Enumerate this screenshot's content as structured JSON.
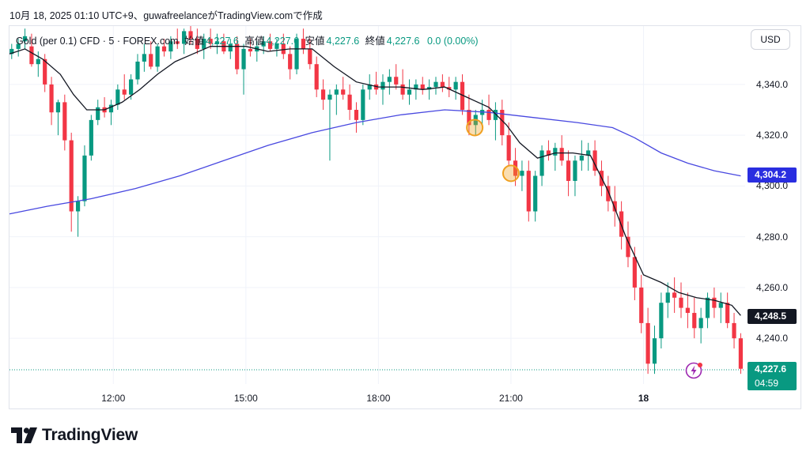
{
  "header": {
    "title": "10月 18, 2025 01:10 UTC+9、guwafreelanceがTradingView.comで作成"
  },
  "legend": {
    "symbol": "Gold (per 0.1) CFD · 5 · FOREX.com",
    "open_label": "始値",
    "open": "4,227.6",
    "high_label": "高値",
    "high": "4,227.6",
    "low_label": "安値",
    "low": "4,227.6",
    "close_label": "終値",
    "close": "4,227.6",
    "change": "0.0 (0.00%)"
  },
  "currency_button": "USD",
  "brand": "TradingView",
  "colors": {
    "up": "#089981",
    "down": "#f23645",
    "ma_fast": "#131722",
    "ma_slow": "#4848e0",
    "marker": "#f0a020",
    "text_up": "#089981"
  },
  "icons": {
    "logo": "tradingview-logo-icon",
    "alert": "lightning-alert-icon"
  },
  "chart_data": {
    "type": "candlestick",
    "title": "Gold (per 0.1) CFD · 5 · FOREX.com",
    "y_ticks": [
      "4,340.0",
      "4,320.0",
      "4,300.0",
      "4,280.0",
      "4,260.0",
      "4,240.0"
    ],
    "y_tick_values": [
      4340,
      4320,
      4300,
      4280,
      4260,
      4240
    ],
    "ylim": [
      4222,
      4363
    ],
    "x_ticks": [
      "12:00",
      "15:00",
      "18:00",
      "21:00",
      "18"
    ],
    "x_tick_hours": [
      12,
      15,
      18,
      21,
      24
    ],
    "xlim_hours": [
      9.65,
      26.3
    ],
    "grid": true,
    "price_tags": [
      {
        "label": "4,304.2",
        "value": 4304.2,
        "color": "#2a2ee0",
        "series": "ma_slow"
      },
      {
        "label": "4,248.5",
        "value": 4248.5,
        "color": "#131722",
        "series": "ma_fast"
      },
      {
        "label": "4,227.6",
        "value": 4227.6,
        "color": "#089981",
        "series": "price",
        "countdown": "04:59"
      }
    ],
    "last_price": 4227.6,
    "ma_fast": [
      [
        9.65,
        4352
      ],
      [
        10.0,
        4354
      ],
      [
        10.4,
        4350
      ],
      [
        10.8,
        4344
      ],
      [
        11.1,
        4336
      ],
      [
        11.4,
        4330
      ],
      [
        11.8,
        4330
      ],
      [
        12.2,
        4333
      ],
      [
        12.6,
        4338
      ],
      [
        13.0,
        4344
      ],
      [
        13.4,
        4349
      ],
      [
        13.8,
        4352
      ],
      [
        14.2,
        4355
      ],
      [
        14.6,
        4355
      ],
      [
        15.0,
        4355
      ],
      [
        15.5,
        4353
      ],
      [
        16.0,
        4354
      ],
      [
        16.5,
        4354
      ],
      [
        17.0,
        4347
      ],
      [
        17.5,
        4341
      ],
      [
        18.0,
        4339
      ],
      [
        18.5,
        4339
      ],
      [
        19.0,
        4338
      ],
      [
        19.5,
        4339
      ],
      [
        20.0,
        4335
      ],
      [
        20.5,
        4331
      ],
      [
        20.9,
        4324
      ],
      [
        21.2,
        4317
      ],
      [
        21.6,
        4311
      ],
      [
        22.0,
        4313
      ],
      [
        22.4,
        4313
      ],
      [
        22.8,
        4312
      ],
      [
        23.2,
        4298
      ],
      [
        23.6,
        4280
      ],
      [
        24.0,
        4265
      ],
      [
        24.4,
        4262
      ],
      [
        24.8,
        4258
      ],
      [
        25.2,
        4256
      ],
      [
        25.6,
        4255
      ],
      [
        26.0,
        4253
      ],
      [
        26.2,
        4249
      ]
    ],
    "ma_slow": [
      [
        9.65,
        4289
      ],
      [
        10.5,
        4292
      ],
      [
        11.5,
        4295
      ],
      [
        12.5,
        4299
      ],
      [
        13.5,
        4304
      ],
      [
        14.5,
        4310
      ],
      [
        15.5,
        4316
      ],
      [
        16.5,
        4321
      ],
      [
        17.5,
        4325
      ],
      [
        18.5,
        4328
      ],
      [
        19.5,
        4330
      ],
      [
        20.5,
        4329
      ],
      [
        21.5,
        4327
      ],
      [
        22.5,
        4325
      ],
      [
        23.3,
        4323
      ],
      [
        23.8,
        4319
      ],
      [
        24.4,
        4313
      ],
      [
        25.0,
        4309
      ],
      [
        25.6,
        4306
      ],
      [
        26.2,
        4304
      ]
    ],
    "markers": [
      {
        "x": 20.18,
        "y": 4323
      },
      {
        "x": 21.0,
        "y": 4305
      }
    ],
    "candles": [
      [
        9.7,
        4352,
        4356,
        4350,
        4354
      ],
      [
        9.85,
        4354,
        4358,
        4351,
        4356
      ],
      [
        10.0,
        4357,
        4362,
        4354,
        4359
      ],
      [
        10.15,
        4355,
        4360,
        4347,
        4348
      ],
      [
        10.3,
        4348,
        4353,
        4343,
        4350
      ],
      [
        10.45,
        4350,
        4352,
        4337,
        4340
      ],
      [
        10.6,
        4340,
        4343,
        4324,
        4329
      ],
      [
        10.75,
        4329,
        4334,
        4320,
        4333
      ],
      [
        10.9,
        4333,
        4336,
        4314,
        4318
      ],
      [
        11.05,
        4318,
        4321,
        4282,
        4290
      ],
      [
        11.2,
        4290,
        4296,
        4280,
        4294
      ],
      [
        11.35,
        4294,
        4316,
        4292,
        4312
      ],
      [
        11.5,
        4312,
        4328,
        4310,
        4326
      ],
      [
        11.65,
        4326,
        4334,
        4324,
        4331
      ],
      [
        11.8,
        4331,
        4335,
        4327,
        4329
      ],
      [
        11.95,
        4329,
        4334,
        4324,
        4332
      ],
      [
        12.1,
        4332,
        4340,
        4330,
        4338
      ],
      [
        12.25,
        4338,
        4344,
        4334,
        4336
      ],
      [
        12.4,
        4336,
        4344,
        4334,
        4342
      ],
      [
        12.55,
        4342,
        4352,
        4340,
        4349
      ],
      [
        12.7,
        4349,
        4356,
        4345,
        4352
      ],
      [
        12.85,
        4352,
        4357,
        4346,
        4347
      ],
      [
        13.0,
        4347,
        4356,
        4345,
        4355
      ],
      [
        13.15,
        4355,
        4358,
        4351,
        4353
      ],
      [
        13.3,
        4353,
        4359,
        4350,
        4357
      ],
      [
        13.45,
        4357,
        4362,
        4354,
        4356
      ],
      [
        13.6,
        4356,
        4362,
        4352,
        4361
      ],
      [
        13.75,
        4361,
        4363,
        4356,
        4358
      ],
      [
        13.9,
        4358,
        4362,
        4352,
        4354
      ],
      [
        14.05,
        4354,
        4360,
        4350,
        4358
      ],
      [
        14.2,
        4358,
        4362,
        4354,
        4356
      ],
      [
        14.35,
        4356,
        4360,
        4352,
        4357
      ],
      [
        14.5,
        4357,
        4360,
        4352,
        4353
      ],
      [
        14.65,
        4353,
        4358,
        4350,
        4356
      ],
      [
        14.8,
        4356,
        4359,
        4344,
        4346
      ],
      [
        14.95,
        4346,
        4356,
        4336,
        4354
      ],
      [
        15.1,
        4354,
        4358,
        4351,
        4353
      ],
      [
        15.25,
        4353,
        4357,
        4349,
        4355
      ],
      [
        15.4,
        4355,
        4359,
        4352,
        4357
      ],
      [
        15.55,
        4357,
        4360,
        4353,
        4354
      ],
      [
        15.7,
        4354,
        4358,
        4351,
        4356
      ],
      [
        15.85,
        4356,
        4360,
        4350,
        4352
      ],
      [
        16.0,
        4352,
        4355,
        4342,
        4346
      ],
      [
        16.15,
        4346,
        4360,
        4344,
        4358
      ],
      [
        16.3,
        4358,
        4362,
        4352,
        4354
      ],
      [
        16.45,
        4354,
        4358,
        4346,
        4348
      ],
      [
        16.6,
        4348,
        4351,
        4335,
        4338
      ],
      [
        16.75,
        4338,
        4342,
        4330,
        4334
      ],
      [
        16.9,
        4334,
        4338,
        4310,
        4336
      ],
      [
        17.05,
        4336,
        4340,
        4328,
        4338
      ],
      [
        17.2,
        4338,
        4343,
        4334,
        4336
      ],
      [
        17.35,
        4336,
        4340,
        4326,
        4330
      ],
      [
        17.5,
        4330,
        4333,
        4321,
        4326
      ],
      [
        17.65,
        4326,
        4340,
        4324,
        4338
      ],
      [
        17.8,
        4338,
        4344,
        4334,
        4340
      ],
      [
        17.95,
        4340,
        4345,
        4336,
        4338
      ],
      [
        18.1,
        4338,
        4344,
        4332,
        4341
      ],
      [
        18.25,
        4341,
        4346,
        4336,
        4343
      ],
      [
        18.4,
        4343,
        4348,
        4338,
        4340
      ],
      [
        18.55,
        4340,
        4346,
        4334,
        4336
      ],
      [
        18.7,
        4336,
        4342,
        4332,
        4338
      ],
      [
        18.85,
        4338,
        4342,
        4334,
        4340
      ],
      [
        19.0,
        4340,
        4343,
        4336,
        4338
      ],
      [
        19.15,
        4338,
        4342,
        4334,
        4339
      ],
      [
        19.3,
        4339,
        4343,
        4336,
        4341
      ],
      [
        19.45,
        4341,
        4344,
        4337,
        4339
      ],
      [
        19.6,
        4339,
        4343,
        4335,
        4338
      ],
      [
        19.75,
        4338,
        4343,
        4334,
        4341
      ],
      [
        19.9,
        4341,
        4344,
        4328,
        4330
      ],
      [
        20.05,
        4330,
        4336,
        4320,
        4324
      ],
      [
        20.2,
        4324,
        4330,
        4320,
        4328
      ],
      [
        20.35,
        4328,
        4334,
        4324,
        4330
      ],
      [
        20.5,
        4330,
        4336,
        4324,
        4326
      ],
      [
        20.65,
        4326,
        4333,
        4318,
        4330
      ],
      [
        20.8,
        4330,
        4334,
        4316,
        4320
      ],
      [
        20.95,
        4320,
        4325,
        4308,
        4310
      ],
      [
        21.1,
        4310,
        4315,
        4300,
        4304
      ],
      [
        21.25,
        4304,
        4310,
        4298,
        4306
      ],
      [
        21.4,
        4306,
        4310,
        4286,
        4290
      ],
      [
        21.55,
        4290,
        4306,
        4286,
        4304
      ],
      [
        21.7,
        4304,
        4316,
        4300,
        4314
      ],
      [
        21.85,
        4314,
        4318,
        4310,
        4312
      ],
      [
        22.0,
        4312,
        4317,
        4306,
        4315
      ],
      [
        22.15,
        4315,
        4320,
        4308,
        4310
      ],
      [
        22.3,
        4310,
        4314,
        4296,
        4302
      ],
      [
        22.45,
        4302,
        4312,
        4296,
        4310
      ],
      [
        22.6,
        4310,
        4318,
        4306,
        4312
      ],
      [
        22.75,
        4312,
        4317,
        4306,
        4314
      ],
      [
        22.9,
        4314,
        4318,
        4304,
        4306
      ],
      [
        23.05,
        4306,
        4310,
        4296,
        4300
      ],
      [
        23.2,
        4300,
        4304,
        4290,
        4294
      ],
      [
        23.35,
        4294,
        4300,
        4284,
        4290
      ],
      [
        23.5,
        4290,
        4294,
        4275,
        4280
      ],
      [
        23.65,
        4280,
        4286,
        4268,
        4272
      ],
      [
        23.8,
        4272,
        4276,
        4255,
        4260
      ],
      [
        23.95,
        4260,
        4265,
        4242,
        4246
      ],
      [
        24.1,
        4246,
        4252,
        4226,
        4230
      ],
      [
        24.25,
        4230,
        4245,
        4226,
        4240
      ],
      [
        24.4,
        4240,
        4258,
        4236,
        4254
      ],
      [
        24.55,
        4254,
        4262,
        4248,
        4258
      ],
      [
        24.7,
        4258,
        4264,
        4250,
        4256
      ],
      [
        24.85,
        4256,
        4262,
        4248,
        4252
      ],
      [
        25.0,
        4252,
        4258,
        4244,
        4250
      ],
      [
        25.15,
        4250,
        4256,
        4240,
        4244
      ],
      [
        25.3,
        4244,
        4252,
        4238,
        4248
      ],
      [
        25.45,
        4248,
        4258,
        4244,
        4256
      ],
      [
        25.6,
        4256,
        4260,
        4248,
        4252
      ],
      [
        25.75,
        4252,
        4258,
        4246,
        4254
      ],
      [
        25.9,
        4254,
        4258,
        4244,
        4246
      ],
      [
        26.05,
        4246,
        4250,
        4236,
        4240
      ],
      [
        26.2,
        4240,
        4242,
        4226,
        4228
      ]
    ]
  }
}
